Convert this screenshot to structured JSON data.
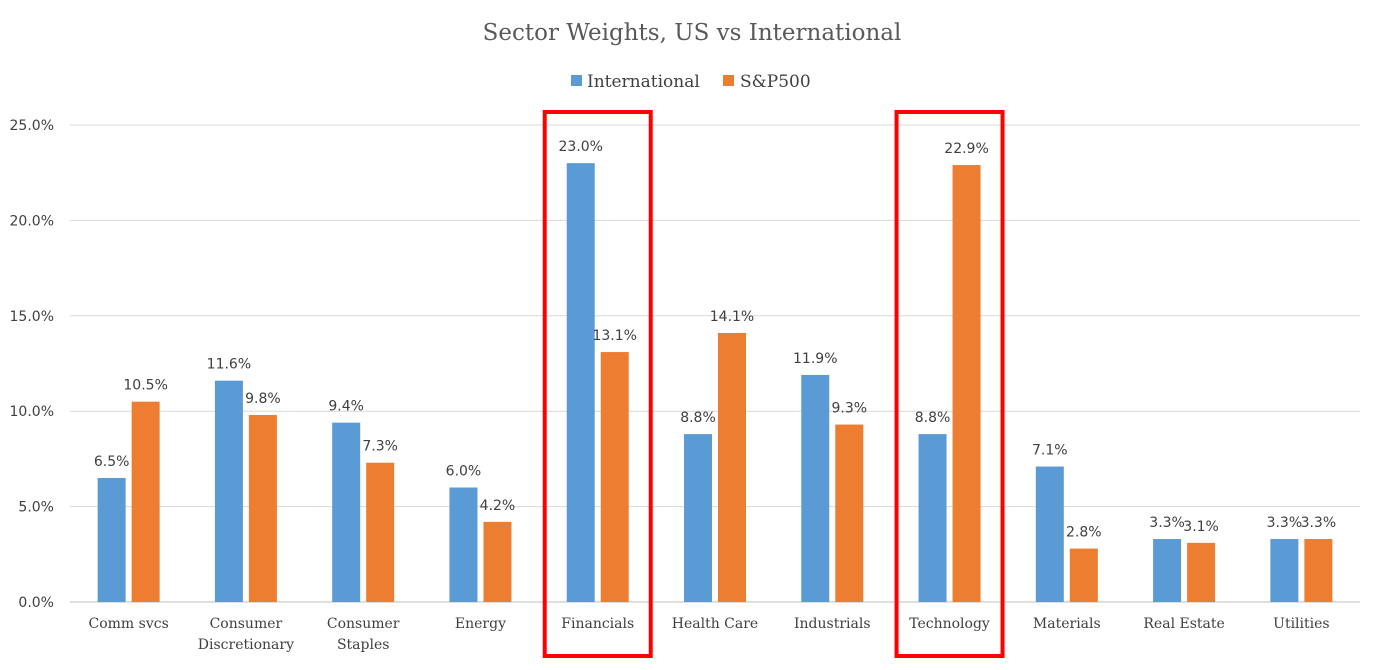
{
  "chart_data": {
    "type": "bar",
    "title": "Sector Weights, US vs International",
    "categories": [
      [
        "Comm svcs"
      ],
      [
        "Consumer",
        "Discretionary"
      ],
      [
        "Consumer",
        "Staples"
      ],
      [
        "Energy"
      ],
      [
        "Financials"
      ],
      [
        "Health Care"
      ],
      [
        "Industrials"
      ],
      [
        "Technology"
      ],
      [
        "Materials"
      ],
      [
        "Real Estate"
      ],
      [
        "Utilities"
      ]
    ],
    "series": [
      {
        "name": "International",
        "color": "#5b9bd5",
        "values": [
          6.5,
          11.6,
          9.4,
          6.0,
          23.0,
          8.8,
          11.9,
          8.8,
          7.1,
          3.3,
          3.3
        ],
        "labels": [
          "6.5%",
          "11.6%",
          "9.4%",
          "6.0%",
          "23.0%",
          "8.8%",
          "11.9%",
          "8.8%",
          "7.1%",
          "3.3%",
          "3.3%"
        ]
      },
      {
        "name": "S&P500",
        "color": "#ed7d31",
        "values": [
          10.5,
          9.8,
          7.3,
          4.2,
          13.1,
          14.1,
          9.3,
          22.9,
          2.8,
          3.1,
          3.3
        ],
        "labels": [
          "10.5%",
          "9.8%",
          "7.3%",
          "4.2%",
          "13.1%",
          "14.1%",
          "9.3%",
          "22.9%",
          "2.8%",
          "3.1%",
          "3.3%"
        ]
      }
    ],
    "ylim": [
      0,
      25
    ],
    "yticks": [
      "0.0%",
      "5.0%",
      "10.0%",
      "15.0%",
      "20.0%",
      "25.0%"
    ],
    "ytick_values": [
      0,
      5,
      10,
      15,
      20,
      25
    ],
    "grid": true,
    "legend_position": "top-center",
    "highlighted_categories": [
      "Financials",
      "Technology"
    ],
    "highlight_color": "#ff0000"
  }
}
